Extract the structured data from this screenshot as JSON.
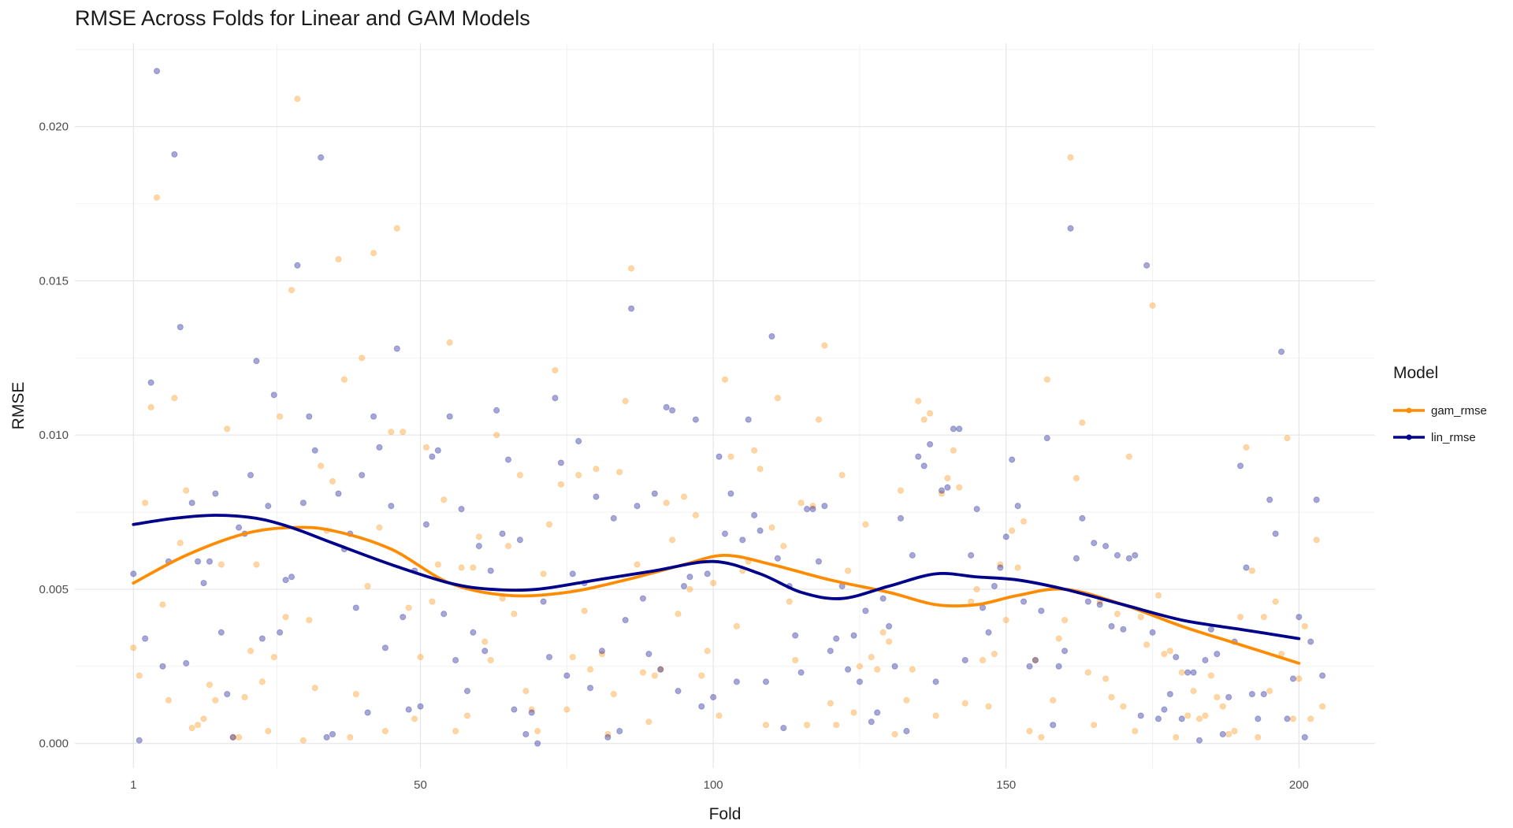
{
  "chart_data": {
    "type": "scatter",
    "title": "RMSE Across Folds for Linear and GAM Models",
    "xlabel": "Fold",
    "ylabel": "RMSE",
    "xlim": [
      -9,
      213
    ],
    "ylim": [
      -0.0008,
      0.0227
    ],
    "x_ticks": [
      1,
      50,
      100,
      150,
      200
    ],
    "y_ticks": [
      0.0,
      0.005,
      0.01,
      0.015,
      0.02
    ],
    "x_tick_labels": [
      "1",
      "50",
      "100",
      "150",
      "200"
    ],
    "y_tick_labels": [
      "0.000",
      "0.005",
      "0.010",
      "0.015",
      "0.020"
    ],
    "grid": true,
    "legend": {
      "title": "Model",
      "position": "right"
    },
    "series": [
      {
        "name": "gam_rmse",
        "color": "#FF8C00",
        "x": [
          1,
          2,
          3,
          4,
          5,
          6,
          7,
          8,
          9,
          10,
          11,
          12,
          13,
          14,
          15,
          16,
          17,
          18,
          19,
          20,
          21,
          22,
          23,
          24,
          25,
          26,
          27,
          28,
          29,
          30,
          31,
          32,
          33,
          34,
          35,
          36,
          37,
          38,
          39,
          40,
          41,
          42,
          43,
          44,
          45,
          46,
          47,
          48,
          49,
          50,
          51,
          52,
          53,
          54,
          55,
          56,
          57,
          58,
          59,
          60,
          61,
          62,
          63,
          64,
          65,
          66,
          67,
          68,
          69,
          70,
          71,
          72,
          73,
          74,
          75,
          76,
          77,
          78,
          79,
          80,
          81,
          82,
          83,
          84,
          85,
          86,
          87,
          88,
          89,
          90,
          91,
          92,
          93,
          94,
          95,
          96,
          97,
          98,
          99,
          100,
          101,
          102,
          103,
          104,
          105,
          106,
          107,
          108,
          109,
          110,
          111,
          112,
          113,
          114,
          115,
          116,
          117,
          118,
          119,
          120,
          121,
          122,
          123,
          124,
          125,
          126,
          127,
          128,
          129,
          130,
          131,
          132,
          133,
          134,
          135,
          136,
          137,
          138,
          139,
          140,
          141,
          142,
          143,
          144,
          145,
          146,
          147,
          148,
          149,
          150,
          151,
          152,
          153,
          154,
          155,
          156,
          157,
          158,
          159,
          160,
          161,
          162,
          163,
          164,
          165,
          166,
          167,
          168,
          169,
          170,
          171,
          172,
          173,
          174,
          175,
          176,
          177,
          178,
          179,
          180,
          181,
          182,
          183,
          184,
          185,
          186,
          187,
          188,
          189,
          190,
          191,
          192,
          193,
          194,
          195,
          196,
          197,
          198,
          199,
          200,
          201,
          202,
          203,
          204
        ],
        "y": [
          0.0031,
          0.0022,
          0.0078,
          0.0109,
          0.0177,
          0.0045,
          0.0014,
          0.0112,
          0.0065,
          0.0082,
          0.0005,
          0.0006,
          0.0008,
          0.0019,
          0.0014,
          0.0058,
          0.0102,
          0.0002,
          0.0002,
          0.0015,
          0.003,
          0.0058,
          0.002,
          0.0004,
          0.0028,
          0.0106,
          0.0041,
          0.0147,
          0.0209,
          0.0001,
          0.004,
          0.0018,
          0.009,
          0.0069,
          0.0085,
          0.0157,
          0.0118,
          0.0002,
          0.0016,
          0.0125,
          0.0051,
          0.0159,
          0.007,
          0.0004,
          0.0101,
          0.0167,
          0.0101,
          0.0044,
          0.0008,
          0.0028,
          0.0096,
          0.0046,
          0.0058,
          0.0079,
          0.013,
          0.0004,
          0.0057,
          0.0009,
          0.0057,
          0.0067,
          0.0033,
          0.0027,
          0.01,
          0.0047,
          0.0064,
          0.0042,
          0.0087,
          0.0017,
          0.0011,
          0.0004,
          0.0055,
          0.0071,
          0.0121,
          0.0084,
          0.0011,
          0.0028,
          0.0087,
          0.0043,
          0.0024,
          0.0089,
          0.0029,
          0.0003,
          0.0016,
          0.0088,
          0.0111,
          0.0154,
          0.0058,
          0.0023,
          0.0007,
          0.0022,
          0.0024,
          0.0078,
          0.0066,
          0.0042,
          0.008,
          0.005,
          0.0074,
          0.0022,
          0.003,
          0.0052,
          0.0009,
          0.0118,
          0.0093,
          0.0038,
          0.0056,
          0.0059,
          0.0095,
          0.0089,
          0.0006,
          0.007,
          0.0112,
          0.0064,
          0.0046,
          0.0027,
          0.0078,
          0.0006,
          0.0077,
          0.0105,
          0.0129,
          0.0013,
          0.0006,
          0.0087,
          0.0056,
          0.001,
          0.0025,
          0.0071,
          0.0028,
          0.0024,
          0.0036,
          0.0033,
          0.0003,
          0.0082,
          0.0014,
          0.0024,
          0.0111,
          0.0105,
          0.0107,
          0.0009,
          0.0081,
          0.0086,
          0.0095,
          0.0083,
          0.0013,
          0.0046,
          0.005,
          0.0027,
          0.0012,
          0.0029,
          0.0058,
          0.004,
          0.0069,
          0.0057,
          0.0072,
          0.0004,
          0.0027,
          0.0002,
          0.0118,
          0.0014,
          0.0034,
          0.004,
          0.019,
          0.0086,
          0.0104,
          0.0023,
          0.0006,
          0.0046,
          0.0021,
          0.0015,
          0.0042,
          0.0012,
          0.0093,
          0.0004,
          0.0041,
          0.0032,
          0.0142,
          0.0048,
          0.0029,
          0.003,
          0.0002,
          0.0023,
          0.0009,
          0.0017,
          0.0008,
          0.0009,
          0.0022,
          0.0015,
          0.0012,
          0.0003,
          0.0004,
          0.0041,
          0.0096,
          0.0056,
          0.0002,
          0.0041,
          0.0017,
          0.0046,
          0.0029,
          0.0099,
          0.0008,
          0.0021,
          0.0038,
          0.0008,
          0.0066,
          0.0012
        ]
      },
      {
        "name": "lin_rmse",
        "color": "#00008B",
        "x": [
          1,
          2,
          3,
          4,
          5,
          6,
          7,
          8,
          9,
          10,
          11,
          12,
          13,
          14,
          15,
          16,
          17,
          18,
          19,
          20,
          21,
          22,
          23,
          24,
          25,
          26,
          27,
          28,
          29,
          30,
          31,
          32,
          33,
          34,
          35,
          36,
          37,
          38,
          39,
          40,
          41,
          42,
          43,
          44,
          45,
          46,
          47,
          48,
          49,
          50,
          51,
          52,
          53,
          54,
          55,
          56,
          57,
          58,
          59,
          60,
          61,
          62,
          63,
          64,
          65,
          66,
          67,
          68,
          69,
          70,
          71,
          72,
          73,
          74,
          75,
          76,
          77,
          78,
          79,
          80,
          81,
          82,
          83,
          84,
          85,
          86,
          87,
          88,
          89,
          90,
          91,
          92,
          93,
          94,
          95,
          96,
          97,
          98,
          99,
          100,
          101,
          102,
          103,
          104,
          105,
          106,
          107,
          108,
          109,
          110,
          111,
          112,
          113,
          114,
          115,
          116,
          117,
          118,
          119,
          120,
          121,
          122,
          123,
          124,
          125,
          126,
          127,
          128,
          129,
          130,
          131,
          132,
          133,
          134,
          135,
          136,
          137,
          138,
          139,
          140,
          141,
          142,
          143,
          144,
          145,
          146,
          147,
          148,
          149,
          150,
          151,
          152,
          153,
          154,
          155,
          156,
          157,
          158,
          159,
          160,
          161,
          162,
          163,
          164,
          165,
          166,
          167,
          168,
          169,
          170,
          171,
          172,
          173,
          174,
          175,
          176,
          177,
          178,
          179,
          180,
          181,
          182,
          183,
          184,
          185,
          186,
          187,
          188,
          189,
          190,
          191,
          192,
          193,
          194,
          195,
          196,
          197,
          198,
          199,
          200,
          201,
          202,
          203,
          204
        ],
        "y": [
          0.0055,
          0.0001,
          0.0034,
          0.0117,
          0.0218,
          0.0025,
          0.0059,
          0.0191,
          0.0135,
          0.0026,
          0.0078,
          0.0059,
          0.0052,
          0.0059,
          0.0081,
          0.0036,
          0.0016,
          0.0002,
          0.007,
          0.0068,
          0.0087,
          0.0124,
          0.0034,
          0.0077,
          0.0113,
          0.0036,
          0.0053,
          0.0054,
          0.0155,
          0.0078,
          0.0106,
          0.0095,
          0.019,
          0.0002,
          0.0003,
          0.0081,
          0.0063,
          0.0068,
          0.0044,
          0.0087,
          0.001,
          0.0106,
          0.0096,
          0.0031,
          0.0077,
          0.0128,
          0.0041,
          0.0011,
          0.0056,
          0.0012,
          0.0071,
          0.0093,
          0.0095,
          0.0042,
          0.0106,
          0.0027,
          0.0076,
          0.0017,
          0.0036,
          0.0064,
          0.003,
          0.0056,
          0.0108,
          0.0068,
          0.0092,
          0.0011,
          0.0066,
          0.0003,
          0.001,
          0.0,
          0.0046,
          0.0028,
          0.0112,
          0.0091,
          0.0022,
          0.0055,
          0.0098,
          0.0052,
          0.0018,
          0.008,
          0.003,
          0.0002,
          0.0073,
          0.0004,
          0.004,
          0.0141,
          0.0077,
          0.0047,
          0.0029,
          0.0081,
          0.0024,
          0.0109,
          0.0108,
          0.0017,
          0.0051,
          0.0054,
          0.0105,
          0.0012,
          0.0055,
          0.0015,
          0.0093,
          0.0068,
          0.0081,
          0.002,
          0.0066,
          0.0105,
          0.0074,
          0.0069,
          0.002,
          0.0132,
          0.006,
          0.0005,
          0.0051,
          0.0035,
          0.0023,
          0.0076,
          0.0076,
          0.0059,
          0.0077,
          0.003,
          0.0034,
          0.0051,
          0.0024,
          0.0035,
          0.002,
          0.0043,
          0.0007,
          0.001,
          0.0047,
          0.0038,
          0.0025,
          0.0073,
          0.0004,
          0.0061,
          0.0093,
          0.009,
          0.0097,
          0.002,
          0.0082,
          0.0083,
          0.0102,
          0.0102,
          0.0027,
          0.0061,
          0.0076,
          0.0044,
          0.0036,
          0.0051,
          0.0057,
          0.0067,
          0.0092,
          0.0077,
          0.0046,
          0.0025,
          0.0027,
          0.0043,
          0.0099,
          0.0006,
          0.0025,
          0.003,
          0.0167,
          0.006,
          0.0073,
          0.0046,
          0.0065,
          0.0045,
          0.0064,
          0.0038,
          0.0061,
          0.0037,
          0.006,
          0.0061,
          0.0009,
          0.0155,
          0.0036,
          0.0008,
          0.0011,
          0.0016,
          0.0028,
          0.0008,
          0.0023,
          0.0023,
          0.0001,
          0.0027,
          0.0037,
          0.0029,
          0.0003,
          0.0015,
          0.0033,
          0.009,
          0.0057,
          0.0016,
          0.0008,
          0.0016,
          0.0079,
          0.0068,
          0.0127,
          0.0008,
          0.0021,
          0.0041,
          0.0002,
          0.0033,
          0.0079,
          0.0022
        ]
      }
    ],
    "smooth": [
      {
        "name": "gam_rmse",
        "color": "#FF8C00",
        "x": [
          1,
          10,
          20,
          28,
          35,
          45,
          55,
          65,
          75,
          85,
          95,
          102,
          110,
          120,
          130,
          138,
          145,
          152,
          160,
          170,
          180,
          190,
          200
        ],
        "y": [
          0.0052,
          0.0061,
          0.0068,
          0.007,
          0.0069,
          0.0063,
          0.0052,
          0.0048,
          0.0049,
          0.0053,
          0.0058,
          0.0061,
          0.0058,
          0.0053,
          0.0049,
          0.0045,
          0.0045,
          0.0048,
          0.005,
          0.0045,
          0.0038,
          0.0032,
          0.0026
        ]
      },
      {
        "name": "lin_rmse",
        "color": "#00008B",
        "x": [
          1,
          8,
          15,
          22,
          28,
          35,
          45,
          55,
          62,
          70,
          80,
          90,
          100,
          108,
          115,
          122,
          130,
          138,
          145,
          152,
          160,
          170,
          180,
          190,
          200
        ],
        "y": [
          0.0071,
          0.0073,
          0.0074,
          0.0073,
          0.007,
          0.0065,
          0.0058,
          0.0052,
          0.005,
          0.005,
          0.0053,
          0.0056,
          0.0059,
          0.0055,
          0.0049,
          0.0047,
          0.0051,
          0.0055,
          0.0054,
          0.0053,
          0.005,
          0.0045,
          0.004,
          0.0037,
          0.0034
        ]
      }
    ]
  }
}
